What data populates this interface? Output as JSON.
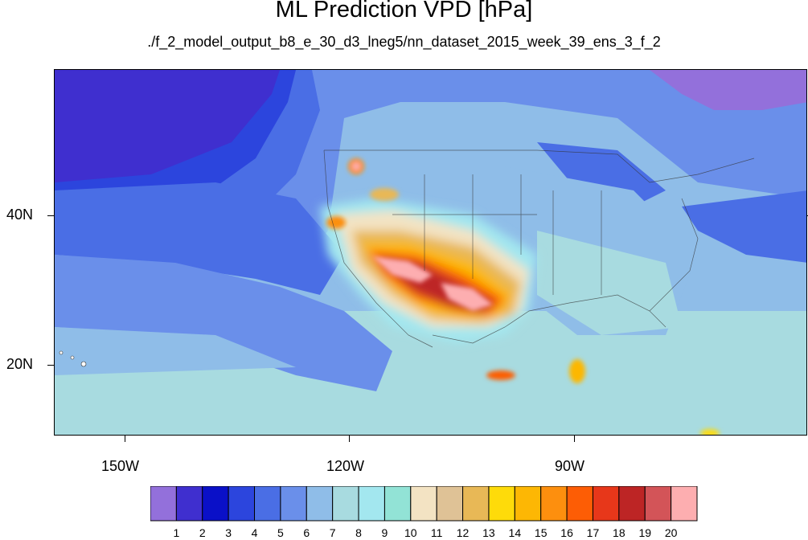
{
  "title": "ML Prediction VPD [hPa]",
  "subtitle": "./f_2_model_output_b8_e_30_d3_lneg5/nn_dataset_2015_week_39_ens_3_f_2",
  "map": {
    "lat_labels": [
      "40N",
      "20N"
    ],
    "lon_labels": [
      "150W",
      "120W",
      "90W"
    ]
  },
  "colorbar": {
    "labels": [
      "1",
      "2",
      "3",
      "4",
      "5",
      "6",
      "7",
      "8",
      "9",
      "10",
      "11",
      "12",
      "13",
      "14",
      "15",
      "16",
      "17",
      "18",
      "19",
      "20"
    ],
    "colors": [
      "#9370db",
      "#3f2fcf",
      "#0a10c8",
      "#2c45dd",
      "#4a6ee5",
      "#6a8fea",
      "#8fbde8",
      "#a8dbe0",
      "#a3e7ef",
      "#92e3d6",
      "#f3e3c3",
      "#dfc296",
      "#e8b856",
      "#fedb0a",
      "#fdb704",
      "#fd8f0e",
      "#fd5d05",
      "#e7371a",
      "#bd2525",
      "#d35458",
      "#fdaeb0"
    ]
  }
}
